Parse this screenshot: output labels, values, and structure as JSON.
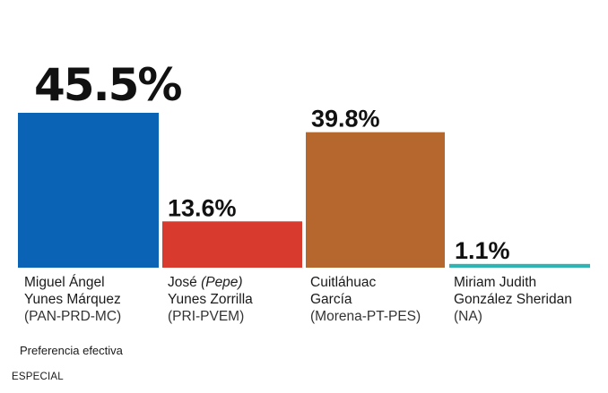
{
  "chart_data": {
    "type": "bar",
    "categories": [
      "Miguel Ángel Yunes Márquez",
      "José (Pepe) Yunes Zorrilla",
      "Cuitláhuac García",
      "Miriam Judith González Sheridan"
    ],
    "values": [
      45.5,
      13.6,
      39.8,
      1.1
    ],
    "value_labels": [
      "45.5%",
      "13.6%",
      "39.8%",
      "1.1%"
    ],
    "colors": [
      "#0b63b6",
      "#d93a2e",
      "#b5672e",
      "#2fb3b3"
    ],
    "title": "",
    "xlabel": "",
    "ylabel": "",
    "ylim": [
      0,
      45.5
    ],
    "grid": false,
    "legend": "none",
    "candidates": [
      {
        "line1": "Miguel Ángel",
        "line2": "Yunes Márquez",
        "coalition": "(PAN-PRD-MC)"
      },
      {
        "line1_pre": "José ",
        "line1_em": "(Pepe)",
        "line2": "Yunes Zorrilla",
        "coalition": "(PRI-PVEM)"
      },
      {
        "line1": "Cuitláhuac",
        "line2": "García",
        "coalition": "(Morena-PT-PES)"
      },
      {
        "line1": "Miriam Judith",
        "line2": "González Sheridan",
        "coalition": "(NA)"
      }
    ]
  },
  "footnote": "Preferencia efectiva",
  "credit": "ESPECIAL"
}
